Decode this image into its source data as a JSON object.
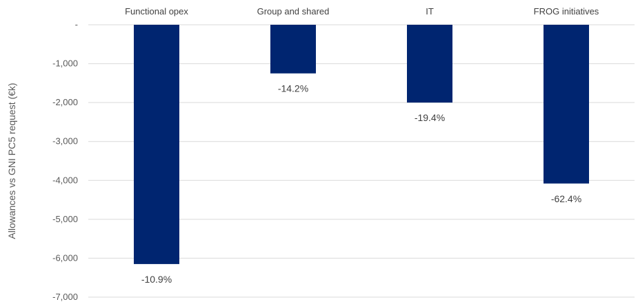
{
  "chart_data": {
    "type": "bar",
    "ylabel": "Allowances vs GNI PC5 request (€k)",
    "categories": [
      "Functional opex",
      "Group and shared",
      "IT",
      "FROG initiatives"
    ],
    "values": [
      -6150,
      -1250,
      -2000,
      -4080
    ],
    "data_labels": [
      "-10.9%",
      "-14.2%",
      "-19.4%",
      "-62.4%"
    ],
    "ylim": [
      -7000,
      0
    ],
    "yticks": [
      {
        "value": 0,
        "label": "-"
      },
      {
        "value": -1000,
        "label": "-1,000"
      },
      {
        "value": -2000,
        "label": "-2,000"
      },
      {
        "value": -3000,
        "label": "-3,000"
      },
      {
        "value": -4000,
        "label": "-4,000"
      },
      {
        "value": -5000,
        "label": "-5,000"
      },
      {
        "value": -6000,
        "label": "-6,000"
      },
      {
        "value": -7000,
        "label": "-7,000"
      }
    ],
    "grid": true,
    "legend": "none",
    "bar_color": "#002570",
    "grid_color": "#d9d9d9"
  }
}
